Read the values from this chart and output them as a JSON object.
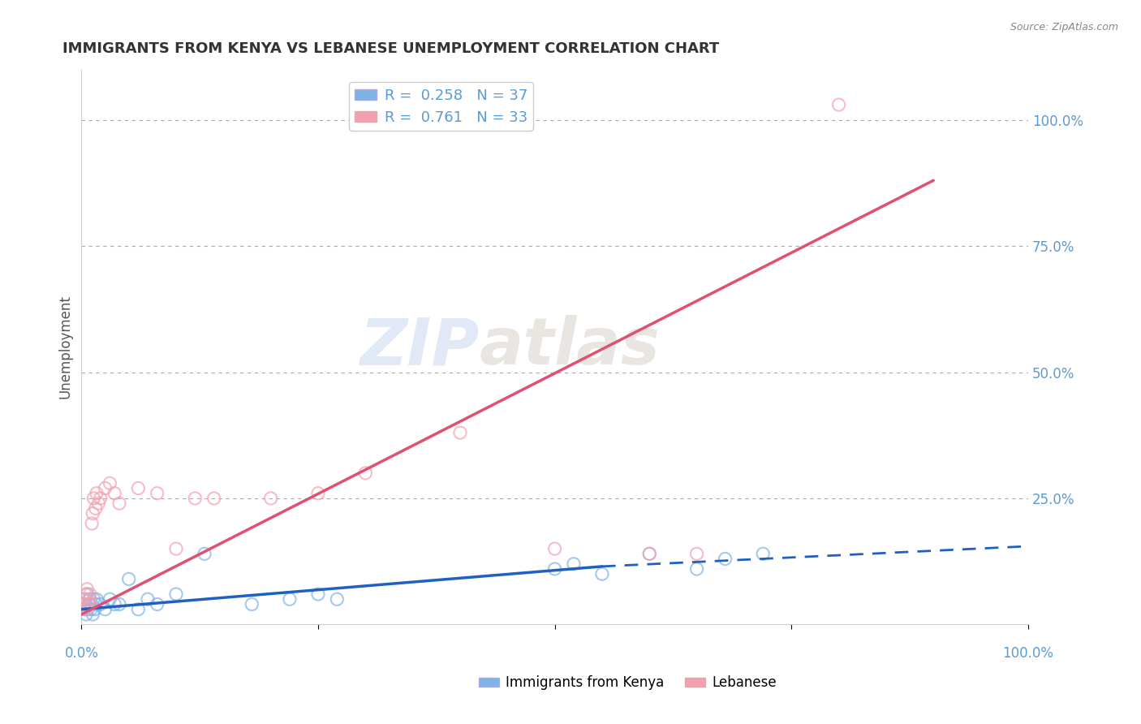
{
  "title": "IMMIGRANTS FROM KENYA VS LEBANESE UNEMPLOYMENT CORRELATION CHART",
  "source": "Source: ZipAtlas.com",
  "ylabel": "Unemployment",
  "legend_entries": [
    {
      "label": "R =  0.258   N = 37",
      "color": "#7fb3e8"
    },
    {
      "label": "R =  0.761   N = 33",
      "color": "#f4a0b0"
    }
  ],
  "bottom_legend": [
    "Immigrants from Kenya",
    "Lebanese"
  ],
  "blue_scatter_x": [
    0.002,
    0.003,
    0.004,
    0.005,
    0.006,
    0.007,
    0.008,
    0.009,
    0.01,
    0.011,
    0.012,
    0.013,
    0.014,
    0.015,
    0.016,
    0.02,
    0.025,
    0.03,
    0.035,
    0.04,
    0.05,
    0.06,
    0.07,
    0.08,
    0.1,
    0.13,
    0.18,
    0.22,
    0.25,
    0.27,
    0.5,
    0.52,
    0.55,
    0.6,
    0.65,
    0.68,
    0.72
  ],
  "blue_scatter_y": [
    0.04,
    0.03,
    0.05,
    0.02,
    0.06,
    0.03,
    0.04,
    0.05,
    0.03,
    0.04,
    0.02,
    0.05,
    0.03,
    0.04,
    0.05,
    0.04,
    0.03,
    0.05,
    0.04,
    0.04,
    0.09,
    0.03,
    0.05,
    0.04,
    0.06,
    0.14,
    0.04,
    0.05,
    0.06,
    0.05,
    0.11,
    0.12,
    0.1,
    0.14,
    0.11,
    0.13,
    0.14
  ],
  "pink_scatter_x": [
    0.002,
    0.003,
    0.004,
    0.005,
    0.006,
    0.007,
    0.008,
    0.009,
    0.01,
    0.011,
    0.012,
    0.013,
    0.015,
    0.016,
    0.018,
    0.02,
    0.025,
    0.03,
    0.035,
    0.04,
    0.06,
    0.08,
    0.1,
    0.12,
    0.14,
    0.2,
    0.25,
    0.3,
    0.4,
    0.5,
    0.6,
    0.65,
    0.8
  ],
  "pink_scatter_y": [
    0.05,
    0.04,
    0.06,
    0.03,
    0.07,
    0.04,
    0.05,
    0.06,
    0.04,
    0.2,
    0.22,
    0.25,
    0.23,
    0.26,
    0.24,
    0.25,
    0.27,
    0.28,
    0.26,
    0.24,
    0.27,
    0.26,
    0.15,
    0.25,
    0.25,
    0.25,
    0.26,
    0.3,
    0.38,
    0.15,
    0.14,
    0.14,
    1.03
  ],
  "blue_scatter_color": "#7fb3e8",
  "pink_scatter_color": "#f4a0b0",
  "blue_line_color": "#2060c0",
  "pink_line_color": "#e05070",
  "watermark_zip": "ZIP",
  "watermark_atlas": "atlas",
  "background_color": "#ffffff",
  "title_color": "#333333",
  "axis_label_color": "#5b9bd5",
  "title_fontsize": 13,
  "label_fontsize": 11
}
